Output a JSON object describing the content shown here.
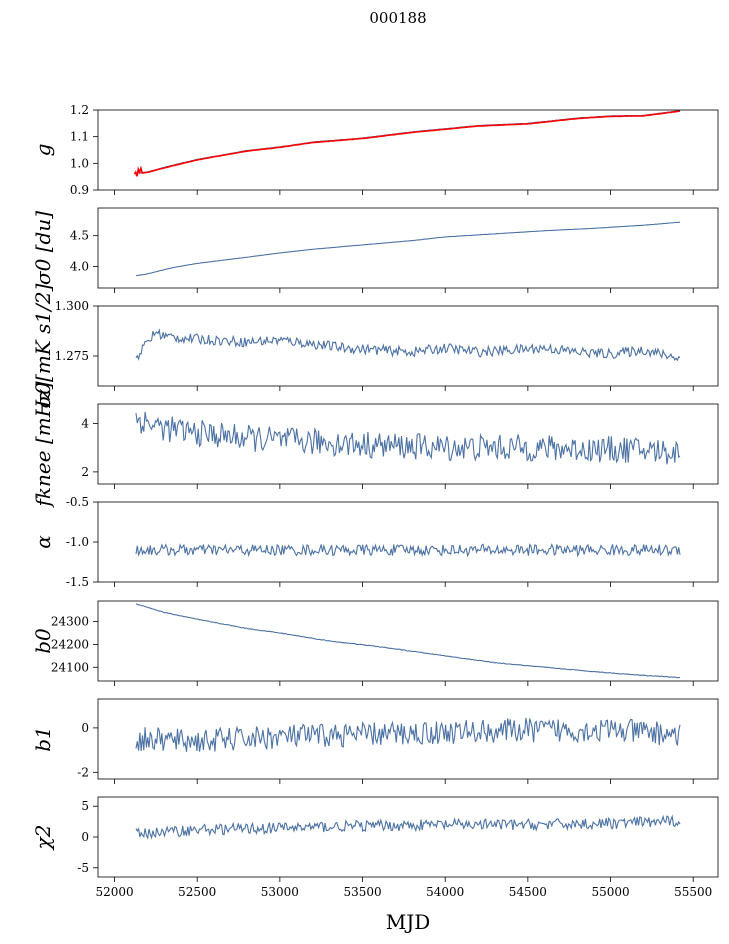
{
  "figure": {
    "title": "000188",
    "line_color": "#4c72a4",
    "fit_color": "#ff0000"
  },
  "chart_data": [
    {
      "type": "line",
      "ylabel": "g",
      "ylim": [
        0.9,
        1.2
      ],
      "yticks": [
        "0.9",
        "1.0",
        "1.1",
        "1.2"
      ],
      "xlim": [
        51900,
        55650
      ],
      "series": [
        {
          "x": [
            52120,
            52200,
            52300,
            52500,
            52800,
            53000,
            53200,
            53500,
            53800,
            54000,
            54200,
            54500,
            54800,
            55000,
            55200,
            55420
          ],
          "values": [
            0.962,
            0.968,
            0.985,
            1.015,
            1.048,
            1.062,
            1.08,
            1.095,
            1.118,
            1.13,
            1.142,
            1.15,
            1.17,
            1.178,
            1.18,
            1.198
          ]
        },
        {
          "x": [
            52120,
            52200,
            52300,
            52500,
            52800,
            53000,
            53200,
            53500,
            53800,
            54000,
            54200,
            54500,
            54800,
            55000,
            55200,
            55420
          ],
          "values": [
            0.96,
            0.966,
            0.983,
            1.013,
            1.046,
            1.06,
            1.078,
            1.093,
            1.116,
            1.128,
            1.14,
            1.148,
            1.168,
            1.176,
            1.178,
            1.196
          ]
        }
      ]
    },
    {
      "type": "line",
      "ylabel": "σ0 [du]",
      "ylim": [
        3.65,
        4.95
      ],
      "yticks": [
        "4.0",
        "4.5"
      ],
      "xlim": [
        51900,
        55650
      ],
      "series": [
        {
          "x": [
            52130,
            52200,
            52350,
            52500,
            52800,
            53000,
            53200,
            53500,
            53800,
            54000,
            54300,
            54600,
            54900,
            55200,
            55420
          ],
          "values": [
            3.85,
            3.88,
            3.98,
            4.05,
            4.15,
            4.22,
            4.28,
            4.35,
            4.42,
            4.48,
            4.53,
            4.58,
            4.62,
            4.67,
            4.72
          ]
        }
      ]
    },
    {
      "type": "line",
      "ylabel": "σ0[mK s1/2]",
      "ylim": [
        1.26,
        1.3
      ],
      "yticks": [
        "1.275",
        "1.300"
      ],
      "xlim": [
        51900,
        55650
      ],
      "series": [
        {
          "x": [
            52130,
            52200,
            52250,
            52300,
            52400,
            52600,
            52800,
            53000,
            53200,
            53400,
            53600,
            53800,
            54000,
            54200,
            54400,
            54600,
            54800,
            55000,
            55200,
            55300,
            55420
          ],
          "values": [
            1.274,
            1.282,
            1.287,
            1.285,
            1.284,
            1.283,
            1.282,
            1.283,
            1.281,
            1.279,
            1.278,
            1.277,
            1.279,
            1.277,
            1.278,
            1.279,
            1.277,
            1.276,
            1.278,
            1.276,
            1.274
          ]
        }
      ]
    },
    {
      "type": "line",
      "ylabel": "fknee [mHz]",
      "ylim": [
        1.5,
        4.8
      ],
      "yticks": [
        "2",
        "4"
      ],
      "xlim": [
        51900,
        55650
      ],
      "series": [
        {
          "x": [
            52130,
            52300,
            52500,
            52800,
            53000,
            53300,
            53600,
            54000,
            54400,
            54800,
            55200,
            55420
          ],
          "values": [
            4.2,
            3.8,
            3.6,
            3.4,
            3.3,
            3.2,
            3.1,
            3.0,
            3.0,
            2.95,
            2.9,
            2.8
          ]
        }
      ]
    },
    {
      "type": "line",
      "ylabel": "α",
      "ylim": [
        -1.5,
        -0.5
      ],
      "yticks": [
        "-1.5",
        "-1.0",
        "-0.5"
      ],
      "xlim": [
        51900,
        55650
      ],
      "series": [
        {
          "x": [
            52130,
            55420
          ],
          "values": [
            -1.1,
            -1.1
          ]
        }
      ]
    },
    {
      "type": "line",
      "ylabel": "b0",
      "ylim": [
        24040,
        24390
      ],
      "yticks": [
        "24100",
        "24200",
        "24300"
      ],
      "xlim": [
        51900,
        55650
      ],
      "series": [
        {
          "x": [
            52130,
            52300,
            52500,
            52800,
            53000,
            53300,
            53600,
            54000,
            54300,
            54600,
            55000,
            55200,
            55420
          ],
          "values": [
            24378,
            24340,
            24310,
            24270,
            24250,
            24215,
            24190,
            24150,
            24120,
            24100,
            24075,
            24065,
            24055
          ]
        }
      ]
    },
    {
      "type": "line",
      "ylabel": "b1",
      "ylim": [
        -2.3,
        1.3
      ],
      "yticks": [
        "-2",
        "0"
      ],
      "xlim": [
        51900,
        55650
      ],
      "series": [
        {
          "x": [
            52130,
            52500,
            53000,
            53500,
            54000,
            54500,
            55000,
            55420
          ],
          "values": [
            -0.5,
            -0.6,
            -0.4,
            -0.3,
            -0.2,
            -0.1,
            -0.1,
            -0.3
          ]
        }
      ]
    },
    {
      "type": "line",
      "ylabel": "χ2",
      "ylim": [
        -6.5,
        6.5
      ],
      "yticks": [
        "-5",
        "0",
        "5"
      ],
      "xlim": [
        51900,
        55650
      ],
      "series": [
        {
          "x": [
            52130,
            52500,
            53000,
            53500,
            54000,
            54500,
            55000,
            55420
          ],
          "values": [
            0.5,
            1.2,
            1.5,
            1.8,
            2.0,
            2.0,
            2.2,
            2.6
          ]
        }
      ]
    }
  ],
  "xaxis": {
    "xlabel": "MJD",
    "xticks": [
      "52000",
      "52500",
      "53000",
      "53500",
      "54000",
      "54500",
      "55000",
      "55500"
    ]
  }
}
